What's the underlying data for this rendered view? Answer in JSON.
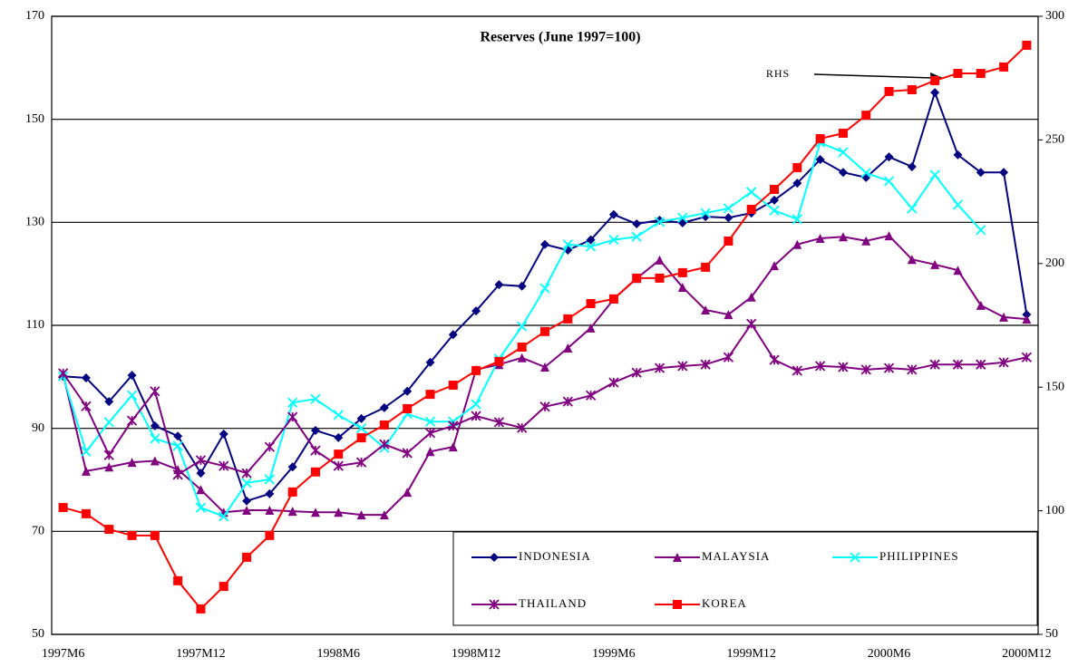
{
  "chart_data": {
    "type": "line",
    "title": "Reserves (June 1997=100)",
    "annotation": "RHS",
    "categories": [
      "1997M6",
      null,
      null,
      null,
      null,
      null,
      "1997M12",
      null,
      null,
      null,
      null,
      null,
      "1998M6",
      null,
      null,
      null,
      null,
      null,
      "1998M12",
      null,
      null,
      null,
      null,
      null,
      "1999M6",
      null,
      null,
      null,
      null,
      null,
      "1999M12",
      null,
      null,
      null,
      null,
      null,
      "2000M6",
      null,
      null,
      null,
      null,
      null,
      "2000M12"
    ],
    "ylim": [
      50,
      170
    ],
    "yticks": [
      50,
      70,
      90,
      110,
      130,
      150,
      170
    ],
    "y2lim": [
      50,
      300
    ],
    "y2ticks": [
      50,
      100,
      150,
      200,
      250,
      300
    ],
    "grid": true,
    "legend": "bottom-right",
    "series": [
      {
        "name": "INDONESIA",
        "color": "#000080",
        "marker": "diamond",
        "values": [
          100.1,
          99.8,
          95.2,
          100.3,
          90.5,
          88.5,
          81.3,
          88.9,
          75.9,
          77.3,
          82.5,
          89.6,
          88.2,
          91.9,
          94.0,
          97.2,
          102.8,
          108.2,
          112.8,
          117.9,
          117.6,
          125.7,
          124.6,
          126.6,
          131.5,
          129.7,
          130.4,
          129.9,
          131.1,
          130.9,
          131.8,
          134.3,
          137.6,
          142.2,
          139.7,
          138.7,
          142.7,
          140.8,
          155.2,
          143.1,
          139.7,
          139.7,
          112.1
        ]
      },
      {
        "name": "MALAYSIA",
        "color": "#800080",
        "marker": "triangle",
        "values": [
          100.5,
          81.7,
          82.5,
          83.4,
          83.7,
          82.0,
          78.1,
          73.7,
          74.1,
          74.1,
          73.9,
          73.7,
          73.7,
          73.2,
          73.2,
          77.6,
          85.5,
          86.4,
          101.4,
          102.4,
          103.7,
          101.9,
          105.6,
          109.5,
          115.1,
          119.1,
          122.7,
          117.4,
          113.0,
          112.1,
          115.5,
          121.6,
          125.7,
          126.9,
          127.2,
          126.4,
          127.4,
          122.8,
          121.8,
          120.7,
          113.9,
          111.6,
          111.2
        ]
      },
      {
        "name": "PHILIPPINES",
        "color": "#00ffff",
        "marker": "x",
        "values": [
          100.1,
          85.5,
          91.2,
          96.4,
          88.0,
          86.6,
          74.6,
          72.9,
          79.4,
          80.1,
          95.0,
          95.7,
          92.6,
          90.0,
          86.2,
          92.8,
          91.3,
          91.3,
          94.7,
          103.5,
          109.8,
          117.2,
          125.7,
          125.3,
          126.6,
          127.2,
          130.1,
          130.9,
          131.8,
          132.7,
          135.9,
          132.3,
          130.6,
          145.5,
          143.6,
          139.6,
          138.0,
          132.7,
          139.2,
          133.4,
          128.5,
          null,
          null
        ]
      },
      {
        "name": "THAILAND",
        "color": "#800080",
        "marker": "star",
        "values": [
          100.7,
          94.3,
          84.8,
          91.5,
          97.2,
          81.0,
          83.8,
          82.7,
          81.3,
          86.4,
          92.2,
          85.7,
          82.7,
          83.4,
          86.9,
          85.2,
          89.1,
          90.5,
          92.4,
          91.2,
          90.1,
          94.2,
          95.2,
          96.4,
          98.9,
          100.8,
          101.7,
          102.1,
          102.4,
          103.8,
          110.3,
          103.3,
          101.2,
          102.1,
          101.9,
          101.4,
          101.7,
          101.4,
          102.4,
          102.4,
          102.4,
          102.8,
          103.8
        ]
      },
      {
        "name": "KOREA",
        "color": "#ff0000",
        "marker": "square",
        "axis": "y2",
        "values": [
          101.3,
          98.8,
          92.5,
          90.0,
          90.0,
          71.7,
          60.3,
          69.4,
          81.2,
          90.0,
          107.6,
          115.7,
          122.9,
          129.5,
          134.7,
          141.3,
          147.1,
          150.8,
          156.7,
          160.4,
          166.2,
          172.5,
          177.6,
          183.8,
          185.7,
          194.1,
          194.1,
          196.3,
          198.5,
          209.1,
          221.9,
          230.0,
          238.8,
          250.5,
          252.7,
          260.0,
          269.6,
          270.3,
          274.0,
          276.9,
          276.9,
          279.5,
          288.3
        ]
      }
    ]
  }
}
